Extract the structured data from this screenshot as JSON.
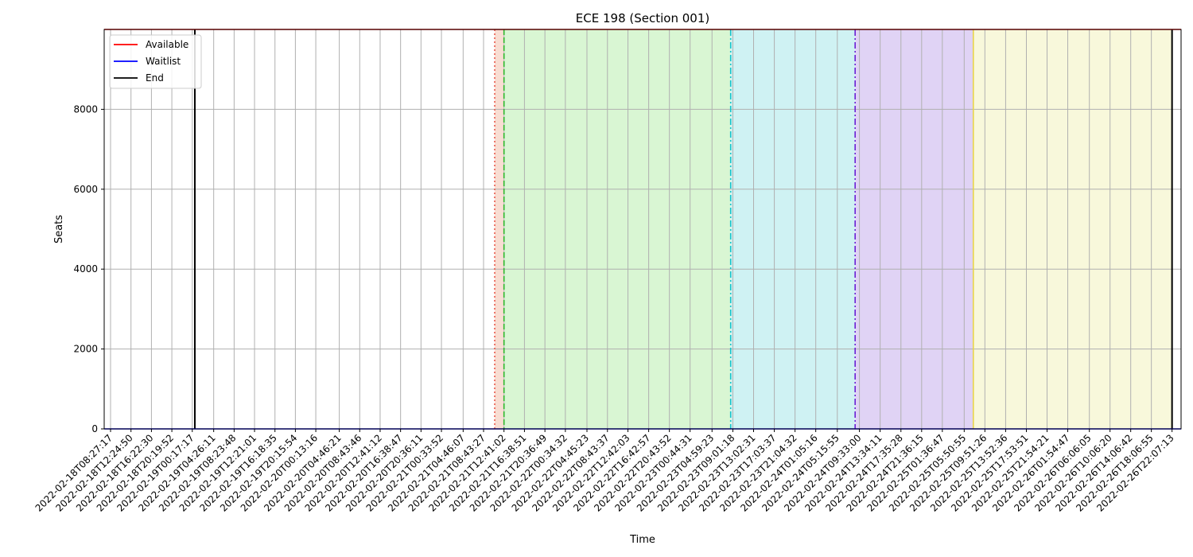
{
  "chart_data": {
    "type": "line",
    "title": "ECE 198 (Section 001)",
    "xlabel": "Time",
    "ylabel": "Seats",
    "ylim": [
      0,
      10000
    ],
    "yticks": [
      0,
      2000,
      4000,
      6000,
      8000
    ],
    "grid": true,
    "legend_position": "top-left",
    "x": [
      "2022-02-18T08:27:17",
      "2022-02-18T12:24:50",
      "2022-02-18T16:22:30",
      "2022-02-18T20:19:52",
      "2022-02-19T00:17:17",
      "2022-02-19T04:26:11",
      "2022-02-19T08:23:48",
      "2022-02-19T12:21:01",
      "2022-02-19T16:18:35",
      "2022-02-19T20:15:54",
      "2022-02-20T00:13:16",
      "2022-02-20T04:46:21",
      "2022-02-20T08:43:46",
      "2022-02-20T12:41:12",
      "2022-02-20T16:38:47",
      "2022-02-20T20:36:11",
      "2022-02-21T00:33:52",
      "2022-02-21T04:46:07",
      "2022-02-21T08:43:27",
      "2022-02-21T12:41:02",
      "2022-02-21T16:38:51",
      "2022-02-21T20:36:49",
      "2022-02-22T00:34:32",
      "2022-02-22T04:45:23",
      "2022-02-22T08:43:37",
      "2022-02-22T12:42:03",
      "2022-02-22T16:42:57",
      "2022-02-22T20:43:52",
      "2022-02-23T00:44:31",
      "2022-02-23T04:59:23",
      "2022-02-23T09:01:18",
      "2022-02-23T13:02:31",
      "2022-02-23T17:03:37",
      "2022-02-23T21:04:32",
      "2022-02-24T01:05:16",
      "2022-02-24T05:15:55",
      "2022-02-24T09:33:00",
      "2022-02-24T13:34:11",
      "2022-02-24T17:35:28",
      "2022-02-24T21:36:15",
      "2022-02-25T01:36:47",
      "2022-02-25T05:50:55",
      "2022-02-25T09:51:26",
      "2022-02-25T13:52:36",
      "2022-02-25T17:53:51",
      "2022-02-25T21:54:21",
      "2022-02-26T01:54:47",
      "2022-02-26T06:06:05",
      "2022-02-26T10:06:20",
      "2022-02-26T14:06:42",
      "2022-02-26T18:06:55",
      "2022-02-26T22:07:13"
    ],
    "series": [
      {
        "name": "Available",
        "color": "#ff0000",
        "values_constant": 10000
      },
      {
        "name": "Waitlist",
        "color": "#0000ff",
        "values_constant": 0
      },
      {
        "name": "End",
        "color": "#000000"
      }
    ],
    "vertical_markers": [
      {
        "x": "2022-02-19T00:47:00",
        "color": "#000000",
        "style": "solid"
      },
      {
        "x": "2022-02-21T10:53:00",
        "color": "#e9574a",
        "style": "dotted"
      },
      {
        "x": "2022-02-21T12:41:02",
        "color": "#2eb82e",
        "style": "dashed"
      },
      {
        "x": "2022-02-23T08:36:00",
        "color": "#11c4cc",
        "style": "dashdot"
      },
      {
        "x": "2022-02-24T08:43:00",
        "color": "#6a1fd4",
        "style": "dashdot"
      },
      {
        "x": "2022-02-25T07:37:00",
        "color": "#e8d44d",
        "style": "solid"
      },
      {
        "x": "2022-02-26T22:07:13",
        "color": "#000000",
        "style": "solid"
      }
    ],
    "shaded_regions": [
      {
        "from": "2022-02-21T10:53:00",
        "to": "2022-02-21T12:41:02",
        "color": "#f8ddd2"
      },
      {
        "from": "2022-02-21T12:41:02",
        "to": "2022-02-23T08:36:00",
        "color": "#d9f6d3"
      },
      {
        "from": "2022-02-23T08:36:00",
        "to": "2022-02-24T08:43:00",
        "color": "#cff2f3"
      },
      {
        "from": "2022-02-24T08:43:00",
        "to": "2022-02-25T07:37:00",
        "color": "#e0d3f5"
      },
      {
        "from": "2022-02-25T07:37:00",
        "to": "2022-02-26T22:07:13",
        "color": "#f8f8db"
      }
    ]
  }
}
